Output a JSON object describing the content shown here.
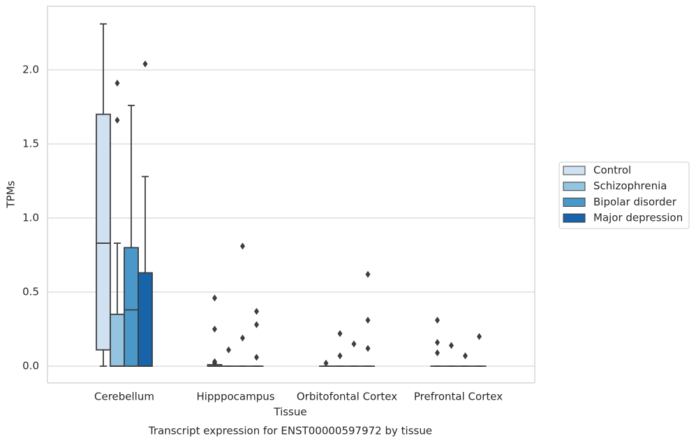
{
  "chart_data": {
    "type": "box",
    "x_label": "Tissue",
    "y_label": "TPMs",
    "caption": "Transcript expression for ENST00000597972 by tissue",
    "categories": [
      "Cerebellum",
      "Hipppocampus",
      "Orbitofontal Cortex",
      "Prefrontal Cortex"
    ],
    "ylim": [
      -0.113,
      2.429
    ],
    "yticks": [
      {
        "value": 0,
        "label": "0.0"
      },
      0.5,
      {
        "value": 1,
        "label": "1.0"
      },
      1.5,
      {
        "value": 2,
        "label": "2.0"
      }
    ],
    "grid": true,
    "legend": "right",
    "series": [
      {
        "name": "Control",
        "color": "#d0e1f2",
        "boxes": [
          {
            "whislo": 0,
            "q1": 0.11,
            "med": 0.83,
            "q3": 1.7,
            "whishi": 2.31,
            "fliers": []
          },
          {
            "whislo": 0,
            "q1": 0,
            "med": 0,
            "q3": 0.01,
            "whishi": 0.01,
            "fliers": [
              0.46,
              0.25,
              0.03,
              0.02
            ]
          },
          {
            "whislo": 0,
            "q1": 0,
            "med": 0,
            "q3": 0,
            "whishi": 0,
            "fliers": [
              0.02
            ]
          },
          {
            "whislo": 0,
            "q1": 0,
            "med": 0,
            "q3": 0,
            "whishi": 0,
            "fliers": [
              0.31,
              0.16,
              0.09
            ]
          }
        ]
      },
      {
        "name": "Schizophrenia",
        "color": "#94c4df",
        "boxes": [
          {
            "whislo": 0,
            "q1": 0,
            "med": 0,
            "q3": 0.35,
            "whishi": 0.83,
            "fliers": [
              1.91,
              1.66
            ]
          },
          {
            "whislo": 0,
            "q1": 0,
            "med": 0,
            "q3": 0,
            "whishi": 0,
            "fliers": [
              0.11
            ]
          },
          {
            "whislo": 0,
            "q1": 0,
            "med": 0,
            "q3": 0,
            "whishi": 0,
            "fliers": [
              0.22,
              0.07
            ]
          },
          {
            "whislo": 0,
            "q1": 0,
            "med": 0,
            "q3": 0,
            "whishi": 0,
            "fliers": [
              0.14
            ]
          }
        ]
      },
      {
        "name": "Bipolar disorder",
        "color": "#4a98c9",
        "boxes": [
          {
            "whislo": 0,
            "q1": 0,
            "med": 0.38,
            "q3": 0.8,
            "whishi": 1.76,
            "fliers": []
          },
          {
            "whislo": 0,
            "q1": 0,
            "med": 0,
            "q3": 0,
            "whishi": 0,
            "fliers": [
              0.81,
              0.19
            ]
          },
          {
            "whislo": 0,
            "q1": 0,
            "med": 0,
            "q3": 0,
            "whishi": 0,
            "fliers": [
              0.15
            ]
          },
          {
            "whislo": 0,
            "q1": 0,
            "med": 0,
            "q3": 0,
            "whishi": 0,
            "fliers": [
              0.07
            ]
          }
        ]
      },
      {
        "name": "Major depression",
        "color": "#1764ab",
        "boxes": [
          {
            "whislo": 0,
            "q1": 0,
            "med": 0,
            "q3": 0.63,
            "whishi": 1.28,
            "fliers": [
              2.04
            ]
          },
          {
            "whislo": 0,
            "q1": 0,
            "med": 0,
            "q3": 0,
            "whishi": 0,
            "fliers": [
              0.37,
              0.28,
              0.06
            ]
          },
          {
            "whislo": 0,
            "q1": 0,
            "med": 0,
            "q3": 0,
            "whishi": 0,
            "fliers": [
              0.62,
              0.31,
              0.12
            ]
          },
          {
            "whislo": 0,
            "q1": 0,
            "med": 0,
            "q3": 0,
            "whishi": 0,
            "fliers": [
              0.2
            ]
          }
        ]
      }
    ]
  }
}
